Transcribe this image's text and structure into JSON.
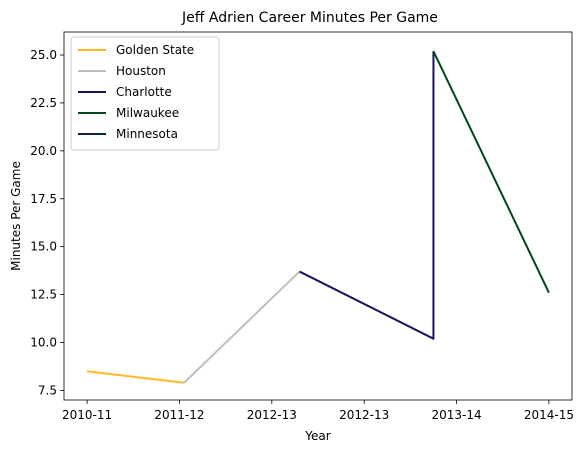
{
  "chart_data": {
    "type": "line",
    "title": "Jeff Adrien Career Minutes Per Game",
    "xlabel": "Year",
    "ylabel": "Minutes Per Game",
    "x_tick_labels": [
      "2010-11",
      "2011-12",
      "2012-13",
      "2012-13",
      "2013-14",
      "2014-15"
    ],
    "x_tick_positions": [
      0,
      1,
      2,
      3,
      4,
      5
    ],
    "xlim": [
      -0.25,
      5.25
    ],
    "ylim": [
      7.0,
      26.2
    ],
    "y_ticks": [
      7.5,
      10.0,
      12.5,
      15.0,
      17.5,
      20.0,
      22.5,
      25.0
    ],
    "y_tick_labels": [
      "7.5",
      "10.0",
      "12.5",
      "15.0",
      "17.5",
      "20.0",
      "22.5",
      "25.0"
    ],
    "grid": false,
    "legend_position": "top-left",
    "series": [
      {
        "name": "Golden State",
        "color": "#FDB927",
        "points": [
          [
            0,
            8.5
          ],
          [
            1.05,
            7.9
          ]
        ]
      },
      {
        "name": "Houston",
        "color": "#BEBEBE",
        "points": [
          [
            1.05,
            7.9
          ],
          [
            2.3,
            13.7
          ]
        ]
      },
      {
        "name": "Charlotte",
        "color": "#1D1160",
        "points": [
          [
            2.3,
            13.7
          ],
          [
            3.75,
            10.2
          ],
          [
            3.75,
            25.2
          ]
        ]
      },
      {
        "name": "Milwaukee",
        "color": "#00471B",
        "points": [
          [
            3.75,
            25.2
          ],
          [
            5.0,
            12.6
          ]
        ]
      },
      {
        "name": "Minnesota",
        "color": "#0C2340",
        "points": []
      }
    ]
  }
}
